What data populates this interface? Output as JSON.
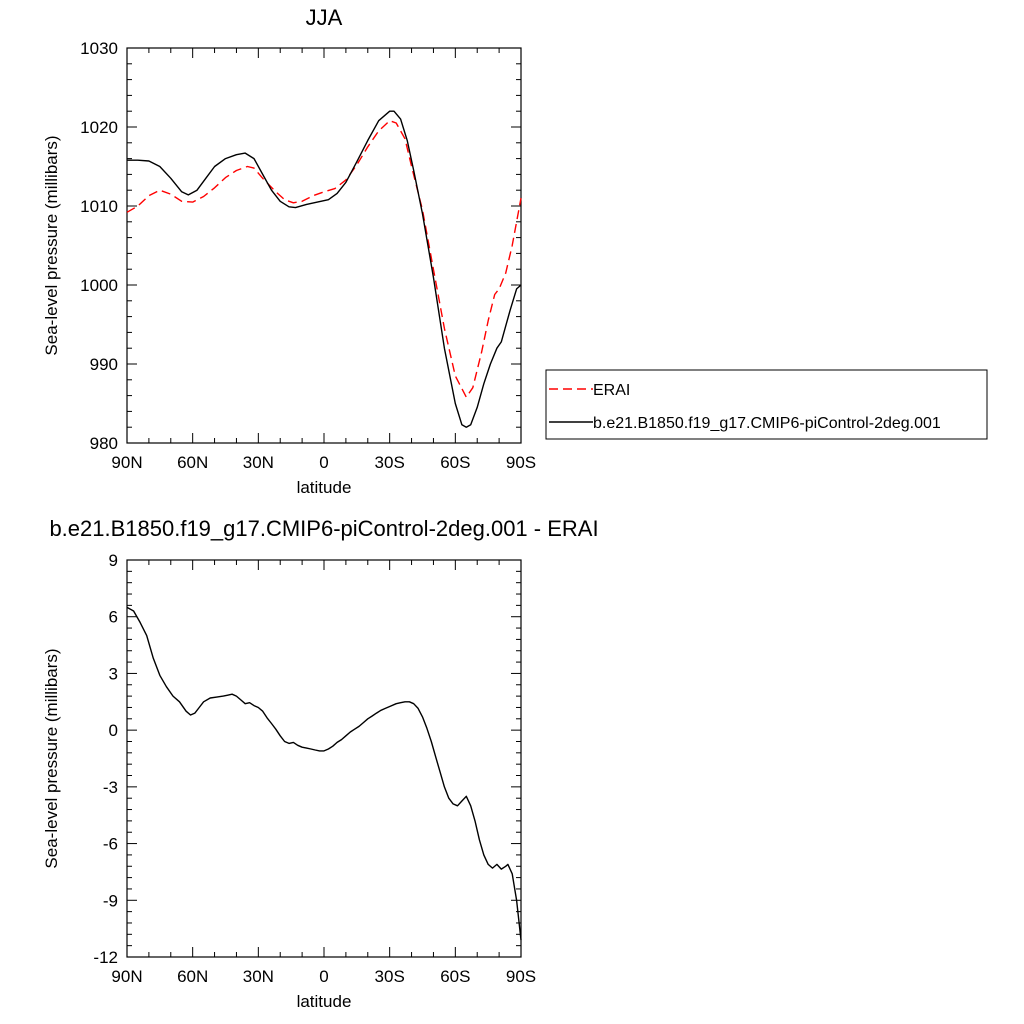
{
  "chart_data": [
    {
      "type": "line",
      "title": "JJA",
      "xlabel": "latitude",
      "ylabel": "Sea-level pressure (millibars)",
      "xlim": [
        -90,
        90
      ],
      "ylim": [
        980,
        1030
      ],
      "x_ticks": [
        -90,
        -60,
        -30,
        0,
        30,
        60,
        90
      ],
      "x_tick_labels": [
        "90N",
        "60N",
        "30N",
        "0",
        "30S",
        "60S",
        "90S"
      ],
      "y_ticks": [
        980,
        990,
        1000,
        1010,
        1020,
        1030
      ],
      "y_tick_labels": [
        "980",
        "990",
        "1000",
        "1010",
        "1020",
        "1030"
      ],
      "legend_position": "right",
      "series": [
        {
          "name": "ERAI",
          "color": "#ff0000",
          "dash": "dashed",
          "points": [
            [
              -90,
              1009.2
            ],
            [
              -85,
              1010.0
            ],
            [
              -80,
              1011.3
            ],
            [
              -75,
              1012.0
            ],
            [
              -70,
              1011.5
            ],
            [
              -65,
              1010.6
            ],
            [
              -60,
              1010.5
            ],
            [
              -55,
              1011.2
            ],
            [
              -50,
              1012.3
            ],
            [
              -45,
              1013.6
            ],
            [
              -40,
              1014.5
            ],
            [
              -35,
              1015.0
            ],
            [
              -32,
              1014.8
            ],
            [
              -28,
              1013.5
            ],
            [
              -22,
              1011.8
            ],
            [
              -18,
              1010.8
            ],
            [
              -14,
              1010.4
            ],
            [
              -10,
              1010.6
            ],
            [
              -5,
              1011.3
            ],
            [
              0,
              1011.8
            ],
            [
              5,
              1012.2
            ],
            [
              10,
              1013.3
            ],
            [
              15,
              1015.2
            ],
            [
              20,
              1017.5
            ],
            [
              25,
              1019.5
            ],
            [
              30,
              1020.8
            ],
            [
              33,
              1020.5
            ],
            [
              37,
              1018.5
            ],
            [
              40,
              1015.0
            ],
            [
              45,
              1009.5
            ],
            [
              50,
              1002.0
            ],
            [
              55,
              994.5
            ],
            [
              60,
              988.5
            ],
            [
              65,
              985.8
            ],
            [
              68,
              987.0
            ],
            [
              72,
              991.5
            ],
            [
              75,
              995.5
            ],
            [
              78,
              998.8
            ],
            [
              80,
              999.5
            ],
            [
              83,
              1001.5
            ],
            [
              86,
              1005.0
            ],
            [
              90,
              1011.0
            ]
          ]
        },
        {
          "name": "b.e21.B1850.f19_g17.CMIP6-piControl-2deg.001",
          "color": "#000000",
          "dash": "solid",
          "points": [
            [
              -90,
              1015.8
            ],
            [
              -85,
              1015.8
            ],
            [
              -80,
              1015.7
            ],
            [
              -75,
              1015.0
            ],
            [
              -70,
              1013.5
            ],
            [
              -65,
              1011.8
            ],
            [
              -62,
              1011.4
            ],
            [
              -58,
              1012.0
            ],
            [
              -54,
              1013.5
            ],
            [
              -50,
              1015.0
            ],
            [
              -45,
              1016.0
            ],
            [
              -40,
              1016.5
            ],
            [
              -36,
              1016.7
            ],
            [
              -32,
              1016.0
            ],
            [
              -28,
              1014.0
            ],
            [
              -24,
              1012.0
            ],
            [
              -20,
              1010.6
            ],
            [
              -16,
              1009.9
            ],
            [
              -13,
              1009.8
            ],
            [
              -8,
              1010.2
            ],
            [
              -3,
              1010.5
            ],
            [
              2,
              1010.8
            ],
            [
              6,
              1011.6
            ],
            [
              10,
              1013.0
            ],
            [
              15,
              1015.6
            ],
            [
              20,
              1018.3
            ],
            [
              25,
              1020.8
            ],
            [
              30,
              1022.0
            ],
            [
              32,
              1022.0
            ],
            [
              35,
              1021.0
            ],
            [
              38,
              1018.3
            ],
            [
              41,
              1014.5
            ],
            [
              45,
              1009.0
            ],
            [
              50,
              1001.0
            ],
            [
              55,
              992.0
            ],
            [
              60,
              985.0
            ],
            [
              63,
              982.3
            ],
            [
              65,
              982.0
            ],
            [
              67,
              982.3
            ],
            [
              70,
              984.5
            ],
            [
              73,
              987.5
            ],
            [
              76,
              990.0
            ],
            [
              79,
              992.0
            ],
            [
              81,
              992.8
            ],
            [
              83,
              994.8
            ],
            [
              85,
              996.8
            ],
            [
              88,
              999.5
            ],
            [
              90,
              1000.0
            ]
          ]
        }
      ]
    },
    {
      "type": "line",
      "title": "b.e21.B1850.f19_g17.CMIP6-piControl-2deg.001 - ERAI",
      "xlabel": "latitude",
      "ylabel": "Sea-level pressure (millibars)",
      "xlim": [
        -90,
        90
      ],
      "ylim": [
        -12,
        9
      ],
      "x_ticks": [
        -90,
        -60,
        -30,
        0,
        30,
        60,
        90
      ],
      "x_tick_labels": [
        "90N",
        "60N",
        "30N",
        "0",
        "30S",
        "60S",
        "90S"
      ],
      "y_ticks": [
        -12,
        -9,
        -6,
        -3,
        0,
        3,
        6,
        9
      ],
      "y_tick_labels": [
        "-12",
        "-9",
        "-6",
        "-3",
        "0",
        "3",
        "6",
        "9"
      ],
      "series": [
        {
          "color": "#000000",
          "dash": "solid",
          "points": [
            [
              -90,
              6.5
            ],
            [
              -87,
              6.3
            ],
            [
              -84,
              5.7
            ],
            [
              -81,
              5.0
            ],
            [
              -78,
              3.8
            ],
            [
              -75,
              2.9
            ],
            [
              -72,
              2.3
            ],
            [
              -69,
              1.8
            ],
            [
              -66,
              1.5
            ],
            [
              -63,
              1.0
            ],
            [
              -61,
              0.8
            ],
            [
              -59,
              0.9
            ],
            [
              -57,
              1.2
            ],
            [
              -55,
              1.5
            ],
            [
              -52,
              1.7
            ],
            [
              -49,
              1.75
            ],
            [
              -46,
              1.8
            ],
            [
              -44,
              1.85
            ],
            [
              -42,
              1.9
            ],
            [
              -40,
              1.8
            ],
            [
              -38,
              1.6
            ],
            [
              -36,
              1.4
            ],
            [
              -34,
              1.45
            ],
            [
              -32,
              1.3
            ],
            [
              -30,
              1.2
            ],
            [
              -28,
              1.0
            ],
            [
              -26,
              0.65
            ],
            [
              -24,
              0.35
            ],
            [
              -22,
              0.05
            ],
            [
              -20,
              -0.3
            ],
            [
              -18,
              -0.6
            ],
            [
              -16,
              -0.7
            ],
            [
              -14,
              -0.65
            ],
            [
              -12,
              -0.8
            ],
            [
              -10,
              -0.9
            ],
            [
              -8,
              -0.95
            ],
            [
              -6,
              -1.0
            ],
            [
              -4,
              -1.05
            ],
            [
              -2,
              -1.1
            ],
            [
              0,
              -1.1
            ],
            [
              2,
              -1.0
            ],
            [
              4,
              -0.85
            ],
            [
              6,
              -0.65
            ],
            [
              8,
              -0.5
            ],
            [
              10,
              -0.3
            ],
            [
              12,
              -0.1
            ],
            [
              14,
              0.05
            ],
            [
              16,
              0.2
            ],
            [
              18,
              0.4
            ],
            [
              20,
              0.6
            ],
            [
              22,
              0.75
            ],
            [
              24,
              0.9
            ],
            [
              26,
              1.05
            ],
            [
              28,
              1.15
            ],
            [
              30,
              1.25
            ],
            [
              33,
              1.4
            ],
            [
              35,
              1.45
            ],
            [
              37,
              1.5
            ],
            [
              39,
              1.5
            ],
            [
              41,
              1.4
            ],
            [
              43,
              1.15
            ],
            [
              45,
              0.7
            ],
            [
              47,
              0.1
            ],
            [
              49,
              -0.6
            ],
            [
              51,
              -1.4
            ],
            [
              53,
              -2.2
            ],
            [
              55,
              -3.0
            ],
            [
              57,
              -3.6
            ],
            [
              59,
              -3.9
            ],
            [
              61,
              -4.0
            ],
            [
              63,
              -3.75
            ],
            [
              65,
              -3.5
            ],
            [
              67,
              -4.0
            ],
            [
              69,
              -4.8
            ],
            [
              71,
              -5.8
            ],
            [
              73,
              -6.6
            ],
            [
              75,
              -7.1
            ],
            [
              77,
              -7.3
            ],
            [
              79,
              -7.1
            ],
            [
              81,
              -7.35
            ],
            [
              83,
              -7.2
            ],
            [
              84,
              -7.1
            ],
            [
              86,
              -7.6
            ],
            [
              88,
              -9.0
            ],
            [
              90,
              -11.1
            ]
          ]
        }
      ]
    }
  ]
}
